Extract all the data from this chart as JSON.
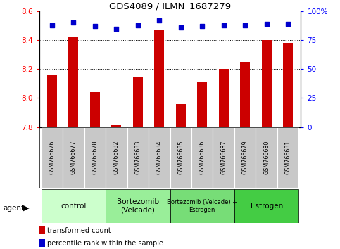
{
  "title": "GDS4089 / ILMN_1687279",
  "samples": [
    "GSM766676",
    "GSM766677",
    "GSM766678",
    "GSM766682",
    "GSM766683",
    "GSM766684",
    "GSM766685",
    "GSM766686",
    "GSM766687",
    "GSM766679",
    "GSM766680",
    "GSM766681"
  ],
  "transformed_counts": [
    8.16,
    8.42,
    8.04,
    7.81,
    8.15,
    8.47,
    7.96,
    8.11,
    8.2,
    8.25,
    8.4,
    8.38
  ],
  "percentile_ranks": [
    88,
    90,
    87,
    85,
    88,
    92,
    86,
    87,
    88,
    88,
    89,
    89
  ],
  "ylim_left": [
    7.8,
    8.6
  ],
  "ylim_right": [
    0,
    100
  ],
  "yticks_left": [
    7.8,
    8.0,
    8.2,
    8.4,
    8.6
  ],
  "yticks_right": [
    0,
    25,
    50,
    75,
    100
  ],
  "ytick_labels_right": [
    "0",
    "25",
    "50",
    "75",
    "100%"
  ],
  "bar_color": "#cc0000",
  "dot_color": "#0000cc",
  "bar_width": 0.45,
  "group_colors": [
    "#ccffcc",
    "#99ee99",
    "#77dd77",
    "#44cc44"
  ],
  "group_label_texts": [
    "control",
    "Bortezomib\n(Velcade)",
    "Bortezomib (Velcade) +\nEstrogen",
    "Estrogen"
  ],
  "group_ranges": [
    [
      0,
      2
    ],
    [
      3,
      5
    ],
    [
      6,
      8
    ],
    [
      9,
      11
    ]
  ],
  "legend_bar_label": "transformed count",
  "legend_dot_label": "percentile rank within the sample",
  "agent_label": "agent",
  "sample_box_color": "#c8c8c8",
  "grid_yticks": [
    8.0,
    8.2,
    8.4
  ]
}
